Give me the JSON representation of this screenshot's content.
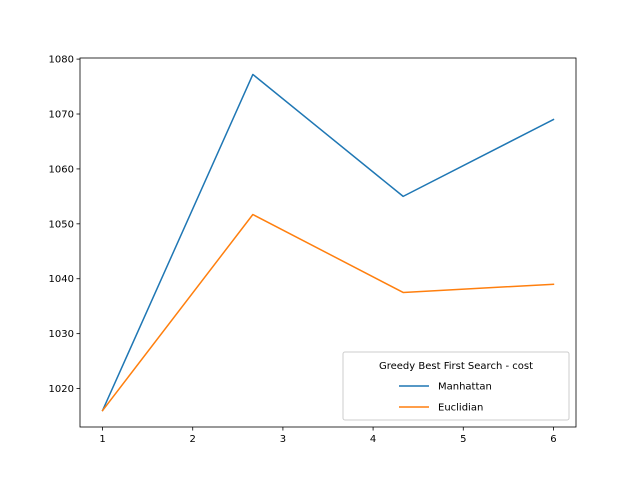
{
  "chart_data": {
    "type": "line",
    "title": "",
    "xlabel": "",
    "ylabel": "",
    "x": [
      1,
      2.6667,
      4.3333,
      6
    ],
    "series": [
      {
        "name": "Manhattan",
        "color": "#1f77b4",
        "values": [
          1016,
          1077.2,
          1055,
          1069
        ]
      },
      {
        "name": "Euclidian",
        "color": "#ff7f0e",
        "values": [
          1016,
          1051.7,
          1037.5,
          1039
        ]
      }
    ],
    "xlim": [
      0.75,
      6.25
    ],
    "ylim": [
      1013,
      1080.2
    ],
    "xticks": [
      1,
      2,
      3,
      4,
      5,
      6
    ],
    "yticks": [
      1020,
      1030,
      1040,
      1050,
      1060,
      1070,
      1080
    ],
    "legend": {
      "title": "Greedy Best First Search - cost",
      "placement": "lower-right"
    },
    "grid": false
  }
}
